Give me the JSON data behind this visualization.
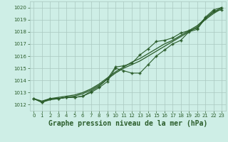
{
  "bg_color": "#ceeee6",
  "grid_color": "#aac8c0",
  "line_color": "#2a5c2a",
  "xlabel": "Graphe pression niveau de la mer (hPa)",
  "xlabel_fontsize": 7,
  "ylim": [
    1011.5,
    1020.5
  ],
  "xlim": [
    -0.5,
    23.5
  ],
  "yticks": [
    1012,
    1013,
    1014,
    1015,
    1016,
    1017,
    1018,
    1019,
    1020
  ],
  "xticks": [
    0,
    1,
    2,
    3,
    4,
    5,
    6,
    7,
    8,
    9,
    10,
    11,
    12,
    13,
    14,
    15,
    16,
    17,
    18,
    19,
    20,
    21,
    22,
    23
  ],
  "series_marker1": [
    1012.5,
    1012.2,
    1012.5,
    1012.5,
    1012.6,
    1012.6,
    1012.7,
    1013.0,
    1013.4,
    1013.9,
    1015.0,
    1014.8,
    1014.6,
    1014.6,
    1015.3,
    1016.0,
    1016.5,
    1017.0,
    1017.3,
    1018.0,
    1018.2,
    1019.1,
    1019.7,
    1019.8
  ],
  "series_marker2": [
    1012.5,
    1012.2,
    1012.5,
    1012.5,
    1012.6,
    1012.6,
    1012.7,
    1013.1,
    1013.5,
    1014.1,
    1015.1,
    1015.2,
    1015.4,
    1016.1,
    1016.6,
    1017.2,
    1017.3,
    1017.5,
    1017.9,
    1018.1,
    1018.3,
    1019.2,
    1019.8,
    1020.0
  ],
  "series_smooth1": [
    1012.5,
    1012.3,
    1012.5,
    1012.6,
    1012.7,
    1012.8,
    1013.0,
    1013.3,
    1013.7,
    1014.2,
    1014.7,
    1015.1,
    1015.5,
    1015.8,
    1016.2,
    1016.6,
    1017.0,
    1017.3,
    1017.7,
    1018.1,
    1018.5,
    1019.1,
    1019.6,
    1020.0
  ],
  "series_smooth2": [
    1012.5,
    1012.2,
    1012.4,
    1012.5,
    1012.6,
    1012.7,
    1012.9,
    1013.2,
    1013.6,
    1014.1,
    1014.6,
    1015.0,
    1015.3,
    1015.6,
    1016.0,
    1016.4,
    1016.8,
    1017.2,
    1017.6,
    1018.0,
    1018.4,
    1019.0,
    1019.5,
    1019.9
  ]
}
